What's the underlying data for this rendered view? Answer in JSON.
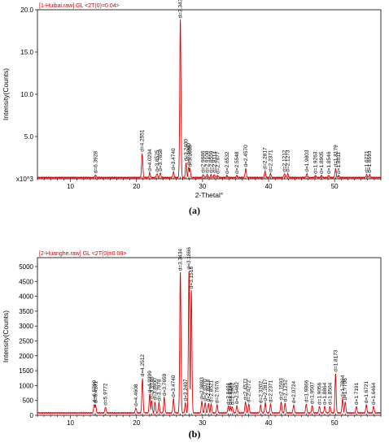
{
  "chart_data": [
    {
      "type": "line",
      "panel_label": "(a)",
      "header": "[1-Huibai.raw] GL <2T(0)=0.04>",
      "xlabel": "2-Thetal°",
      "ylabel": "Intensity(Counts)",
      "y_multiplier_label": "x10^3",
      "xlim": [
        5,
        57
      ],
      "ylim": [
        0,
        20
      ],
      "x_ticks": [
        10,
        20,
        30,
        40,
        50
      ],
      "y_ticks": [
        5.0,
        10.0,
        15.0,
        20.0
      ],
      "y_tick_labels": [
        "5.0",
        "10.0",
        "15.0",
        "20.0"
      ],
      "baseline": 0.15,
      "color": "#e00000",
      "peaks": [
        {
          "x": 13.8,
          "y": 0.45,
          "label": "d=6.3928"
        },
        {
          "x": 20.86,
          "y": 3.0,
          "label": "d=4.2551"
        },
        {
          "x": 22.0,
          "y": 0.7,
          "label": "d=4.0294"
        },
        {
          "x": 23.1,
          "y": 0.6,
          "label": "d=3.8525"
        },
        {
          "x": 23.6,
          "y": 0.7,
          "label": "d=3.7658"
        },
        {
          "x": 25.6,
          "y": 0.8,
          "label": "d=3.4740"
        },
        {
          "x": 26.64,
          "y": 18.8,
          "label": "d=3.3434"
        },
        {
          "x": 27.5,
          "y": 1.9,
          "label": "d=3.2400"
        },
        {
          "x": 27.9,
          "y": 1.4,
          "label": "d=3.1940"
        },
        {
          "x": 28.1,
          "y": 1.2,
          "label": "d=3.1638"
        },
        {
          "x": 30.1,
          "y": 0.5,
          "label": "d=2.9686"
        },
        {
          "x": 30.7,
          "y": 0.5,
          "label": "d=2.9108"
        },
        {
          "x": 31.3,
          "y": 0.5,
          "label": "d=2.8559"
        },
        {
          "x": 31.8,
          "y": 0.5,
          "label": "d=2.8114"
        },
        {
          "x": 32.3,
          "y": 0.4,
          "label": "d=2.7677"
        },
        {
          "x": 33.7,
          "y": 0.4,
          "label": "d=2.6532"
        },
        {
          "x": 35.2,
          "y": 0.4,
          "label": "d=2.5548"
        },
        {
          "x": 36.54,
          "y": 1.2,
          "label": "d=2.4570"
        },
        {
          "x": 39.46,
          "y": 0.9,
          "label": "d=2.2817"
        },
        {
          "x": 40.3,
          "y": 0.6,
          "label": "d=2.2371"
        },
        {
          "x": 42.4,
          "y": 0.6,
          "label": "d=2.1212"
        },
        {
          "x": 42.9,
          "y": 0.6,
          "label": "d=2.1273"
        },
        {
          "x": 45.8,
          "y": 0.6,
          "label": "d=1.9803"
        },
        {
          "x": 47.1,
          "y": 0.4,
          "label": "d=1.9263"
        },
        {
          "x": 48.0,
          "y": 0.4,
          "label": "d=1.8905"
        },
        {
          "x": 49.1,
          "y": 0.4,
          "label": "d=1.8546"
        },
        {
          "x": 50.14,
          "y": 1.2,
          "label": "d=1.8179"
        },
        {
          "x": 50.6,
          "y": 0.4,
          "label": "d=1.8011"
        },
        {
          "x": 54.85,
          "y": 0.5,
          "label": "d=1.6721"
        },
        {
          "x": 55.3,
          "y": 0.5,
          "label": "d=1.6593"
        }
      ]
    },
    {
      "type": "line",
      "panel_label": "(b)",
      "header": "[2-Huanghe.raw] GL <2T(0)=0.08>",
      "xlabel": "2-Thetal°",
      "ylabel": "Intensity(Counts)",
      "xlim": [
        5,
        57
      ],
      "ylim": [
        0,
        5300
      ],
      "x_ticks": [
        10,
        20,
        30,
        40,
        50
      ],
      "y_ticks": [
        0,
        500,
        1000,
        1500,
        2000,
        2500,
        3000,
        3500,
        4000,
        4500,
        5000
      ],
      "y_tick_labels": [
        "0",
        "500",
        "1000",
        "1500",
        "2000",
        "2500",
        "3000",
        "3500",
        "4000",
        "4500",
        "5000"
      ],
      "baseline": 80,
      "color": "#e00000",
      "peaks": [
        {
          "x": 13.6,
          "y": 380,
          "label": "d=6.5799"
        },
        {
          "x": 13.8,
          "y": 350,
          "label": "d=6.4181"
        },
        {
          "x": 15.3,
          "y": 280,
          "label": "d=5.9772"
        },
        {
          "x": 19.9,
          "y": 250,
          "label": "d=4.4608"
        },
        {
          "x": 20.9,
          "y": 1250,
          "label": "d=4.2512"
        },
        {
          "x": 22.0,
          "y": 700,
          "label": "d=4.0399"
        },
        {
          "x": 22.3,
          "y": 500,
          "label": "d=3.9746"
        },
        {
          "x": 22.8,
          "y": 450,
          "label": "d=3.8900"
        },
        {
          "x": 23.4,
          "y": 420,
          "label": "d=3.7978"
        },
        {
          "x": 24.2,
          "y": 600,
          "label": "d=3.7659"
        },
        {
          "x": 25.6,
          "y": 550,
          "label": "d=3.4740"
        },
        {
          "x": 26.64,
          "y": 4800,
          "label": "d=3.3434"
        },
        {
          "x": 27.4,
          "y": 420,
          "label": "d=3.2497"
        },
        {
          "x": 27.95,
          "y": 4850,
          "label": "d=3.1866"
        },
        {
          "x": 28.3,
          "y": 4200,
          "label": "d=3.1518"
        },
        {
          "x": 29.9,
          "y": 480,
          "label": "d=2.9893"
        },
        {
          "x": 30.4,
          "y": 420,
          "label": "d=2.9370"
        },
        {
          "x": 30.9,
          "y": 400,
          "label": "d=2.8918"
        },
        {
          "x": 31.3,
          "y": 380,
          "label": "d=2.8521"
        },
        {
          "x": 32.2,
          "y": 350,
          "label": "d=2.7676"
        },
        {
          "x": 33.9,
          "y": 300,
          "label": "d=2.6401"
        },
        {
          "x": 34.2,
          "y": 300,
          "label": "d=2.6185"
        },
        {
          "x": 34.5,
          "y": 300,
          "label": "d=2.5962"
        },
        {
          "x": 35.2,
          "y": 320,
          "label": "d=2.5482"
        },
        {
          "x": 36.5,
          "y": 450,
          "label": "d=2.4571"
        },
        {
          "x": 37.0,
          "y": 380,
          "label": "d=2.4272"
        },
        {
          "x": 38.8,
          "y": 350,
          "label": "d=2.3202"
        },
        {
          "x": 39.5,
          "y": 420,
          "label": "d=2.2817"
        },
        {
          "x": 40.3,
          "y": 380,
          "label": "d=2.2371"
        },
        {
          "x": 41.9,
          "y": 450,
          "label": "d=2.1593"
        },
        {
          "x": 42.5,
          "y": 400,
          "label": "d=2.1252"
        },
        {
          "x": 43.8,
          "y": 350,
          "label": "d=2.0724"
        },
        {
          "x": 45.7,
          "y": 380,
          "label": "d=1.9866"
        },
        {
          "x": 46.6,
          "y": 320,
          "label": "d=1.9507"
        },
        {
          "x": 47.7,
          "y": 300,
          "label": "d=1.9056"
        },
        {
          "x": 48.5,
          "y": 300,
          "label": "d=1.8864"
        },
        {
          "x": 49.3,
          "y": 300,
          "label": "d=1.8504"
        },
        {
          "x": 50.14,
          "y": 1400,
          "label": "d=1.8173"
        },
        {
          "x": 51.2,
          "y": 550,
          "label": "d=1.7864"
        },
        {
          "x": 51.6,
          "y": 450,
          "label": "d=1.7706"
        },
        {
          "x": 53.3,
          "y": 300,
          "label": "d=1.7191"
        },
        {
          "x": 54.8,
          "y": 350,
          "label": "d=1.6721"
        },
        {
          "x": 55.9,
          "y": 300,
          "label": "d=1.6464"
        }
      ]
    }
  ]
}
